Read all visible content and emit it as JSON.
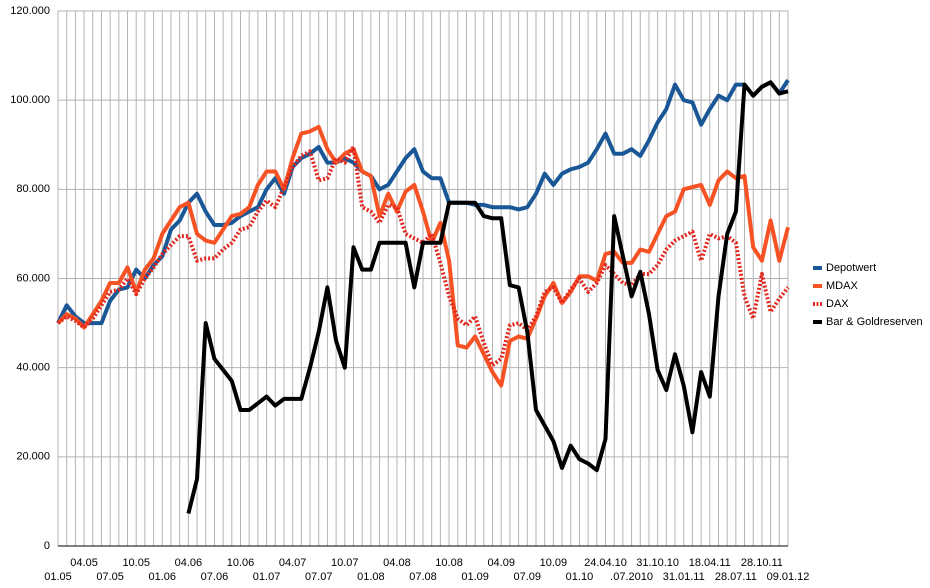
{
  "chart_data": {
    "type": "line",
    "categories": [
      "01.05",
      null,
      null,
      "04.05",
      null,
      null,
      "07.05",
      null,
      null,
      "10.05",
      null,
      null,
      "01.06",
      null,
      null,
      "04.06",
      null,
      null,
      "07.06",
      null,
      null,
      "10.06",
      null,
      null,
      "01.07",
      null,
      null,
      "04.07",
      null,
      null,
      "07.07",
      null,
      null,
      "10.07",
      null,
      null,
      "01.08",
      null,
      null,
      "04.08",
      null,
      null,
      "07.08",
      null,
      null,
      "10.08",
      null,
      null,
      "01.09",
      null,
      null,
      "04.09",
      null,
      null,
      "07.09",
      null,
      null,
      "10.09",
      null,
      null,
      "01.10",
      null,
      null,
      "24.04.10",
      null,
      null,
      ".07.2010",
      null,
      null,
      "31.10.10",
      null,
      null,
      "31.01.11",
      null,
      null,
      "18.04.11",
      null,
      null,
      "28.07.11",
      null,
      null,
      "28.10.11",
      null,
      null,
      "09.01.12"
    ],
    "series": [
      {
        "name": "Depotwert",
        "color": "#1a5796",
        "dashed": false,
        "values": [
          50000,
          54000,
          51500,
          50000,
          50000,
          50000,
          55000,
          57500,
          58000,
          62000,
          60000,
          63000,
          65000,
          71000,
          73000,
          77000,
          79000,
          75000,
          72000,
          72000,
          72500,
          74000,
          75000,
          76000,
          80000,
          82500,
          79000,
          85000,
          87000,
          88000,
          89500,
          86000,
          86000,
          87000,
          86000,
          84000,
          83000,
          80000,
          81000,
          84000,
          87000,
          89000,
          84000,
          82500,
          82500,
          77000,
          77000,
          77000,
          76500,
          76500,
          76000,
          76000,
          76000,
          75500,
          76000,
          79000,
          83500,
          81000,
          83500,
          84500,
          85000,
          86000,
          89000,
          92500,
          88000,
          88000,
          89000,
          87500,
          91000,
          95000,
          98000,
          103500,
          100000,
          99500,
          94500,
          98000,
          101000,
          100000,
          103500,
          103500,
          101000,
          103000,
          104000,
          101500,
          104500
        ]
      },
      {
        "name": "MDAX",
        "color": "#f75224",
        "dashed": false,
        "values": [
          50000,
          52000,
          51000,
          49000,
          52000,
          55000,
          59000,
          59000,
          62500,
          57000,
          62000,
          64500,
          70000,
          73000,
          76000,
          77000,
          70000,
          68500,
          68000,
          71000,
          74000,
          74500,
          76000,
          81000,
          84000,
          84000,
          80000,
          87000,
          92500,
          93000,
          94000,
          89000,
          86000,
          88000,
          89000,
          84000,
          83000,
          74000,
          79000,
          75000,
          79500,
          81000,
          75000,
          68000,
          72500,
          64000,
          45000,
          44500,
          47000,
          43000,
          39000,
          36000,
          46000,
          47000,
          46500,
          51000,
          56000,
          59000,
          54500,
          57000,
          60500,
          60500,
          59500,
          65500,
          66000,
          63500,
          63500,
          66500,
          66000,
          70000,
          74000,
          75000,
          80000,
          80500,
          81000,
          76500,
          82000,
          84000,
          82500,
          83000,
          67000,
          64000,
          73000,
          64000,
          71500
        ]
      },
      {
        "name": "DAX",
        "color": "#e2271f",
        "dashed": true,
        "values": [
          50000,
          51500,
          50500,
          49000,
          51000,
          54000,
          57000,
          57500,
          60000,
          56500,
          60000,
          62500,
          65500,
          67500,
          69500,
          69500,
          64000,
          64500,
          64500,
          66500,
          68000,
          71000,
          71500,
          75000,
          77500,
          76000,
          80500,
          85000,
          87500,
          88500,
          82000,
          82500,
          87000,
          86000,
          89500,
          76000,
          75000,
          72500,
          76500,
          76000,
          70000,
          69000,
          68000,
          70000,
          63500,
          56000,
          51000,
          49500,
          51500,
          45500,
          40500,
          42000,
          49500,
          50000,
          48500,
          51500,
          57000,
          58000,
          54500,
          57500,
          60000,
          57000,
          59000,
          63000,
          61000,
          59000,
          58500,
          61000,
          61000,
          63000,
          66500,
          68500,
          69500,
          70500,
          64000,
          70000,
          69000,
          69500,
          68000,
          56000,
          51000,
          61000,
          52500,
          55500,
          58000
        ]
      },
      {
        "name": "Bar & Goldreserven",
        "color": "#000000",
        "dashed": false,
        "values": [
          null,
          null,
          null,
          null,
          null,
          null,
          null,
          null,
          null,
          null,
          null,
          null,
          null,
          null,
          null,
          7300,
          15000,
          50000,
          42000,
          39500,
          37000,
          30500,
          30500,
          32000,
          33500,
          31500,
          33000,
          33000,
          33000,
          40000,
          48000,
          58000,
          46000,
          40000,
          67000,
          62000,
          62000,
          68000,
          68000,
          68000,
          68000,
          58000,
          68000,
          68000,
          68000,
          77000,
          77000,
          77000,
          77000,
          74000,
          73500,
          73500,
          58500,
          58000,
          48000,
          30500,
          27000,
          23500,
          17500,
          22500,
          19500,
          18500,
          17000,
          24000,
          74000,
          65000,
          56000,
          61500,
          52000,
          39500,
          35000,
          43000,
          36000,
          25500,
          39000,
          33500,
          56000,
          70000,
          75000,
          103500,
          101000,
          103000,
          104000,
          101500,
          102000
        ]
      }
    ],
    "ylim": [
      0,
      120000
    ],
    "yticks": [
      0,
      {
        "value": 20000,
        "label": "20.000"
      },
      {
        "value": 40000,
        "label": "40.000"
      },
      {
        "value": 60000,
        "label": "60.000"
      },
      {
        "value": 80000,
        "label": "80.000"
      },
      {
        "value": 100000,
        "label": "100.000"
      },
      {
        "value": 120000,
        "label": "120.000"
      }
    ],
    "grid": true,
    "legend": "right"
  }
}
